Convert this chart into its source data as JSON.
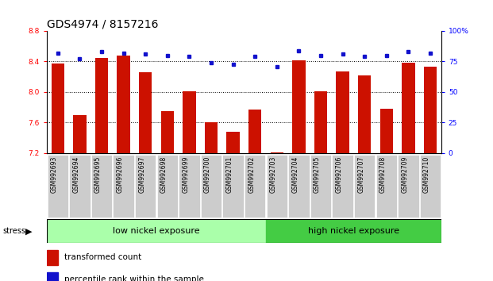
{
  "title": "GDS4974 / 8157216",
  "samples": [
    "GSM992693",
    "GSM992694",
    "GSM992695",
    "GSM992696",
    "GSM992697",
    "GSM992698",
    "GSM992699",
    "GSM992700",
    "GSM992701",
    "GSM992702",
    "GSM992703",
    "GSM992704",
    "GSM992705",
    "GSM992706",
    "GSM992707",
    "GSM992708",
    "GSM992709",
    "GSM992710"
  ],
  "bar_values": [
    8.37,
    7.7,
    8.45,
    8.48,
    8.26,
    7.75,
    8.01,
    7.6,
    7.48,
    7.77,
    7.21,
    8.41,
    8.01,
    8.27,
    8.22,
    7.78,
    8.38,
    8.33
  ],
  "percentile_values": [
    82,
    77,
    83,
    82,
    81,
    80,
    79,
    74,
    73,
    79,
    71,
    84,
    80,
    81,
    79,
    80,
    83,
    82
  ],
  "ylim_left": [
    7.2,
    8.8
  ],
  "ylim_right": [
    0,
    100
  ],
  "yticks_left": [
    7.2,
    7.6,
    8.0,
    8.4,
    8.8
  ],
  "yticks_right": [
    0,
    25,
    50,
    75,
    100
  ],
  "bar_color": "#cc1100",
  "dot_color": "#1111cc",
  "low_nickel_count": 10,
  "high_nickel_count": 8,
  "low_nickel_label": "low nickel exposure",
  "high_nickel_label": "high nickel exposure",
  "stress_label": "stress",
  "legend_bar_label": "transformed count",
  "legend_dot_label": "percentile rank within the sample",
  "background_color": "#ffffff",
  "plot_bg_color": "#ffffff",
  "low_nickel_bg": "#aaffaa",
  "high_nickel_bg": "#44cc44",
  "xtick_bg": "#cccccc",
  "title_fontsize": 10,
  "tick_fontsize": 6.5,
  "sample_fontsize": 5.5
}
